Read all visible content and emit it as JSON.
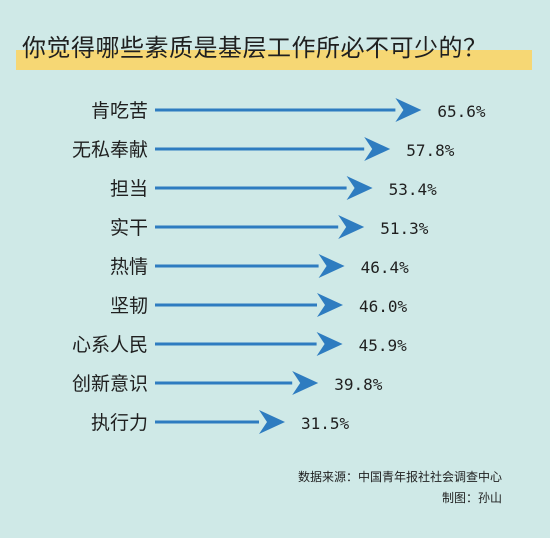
{
  "chart_data": {
    "type": "bar",
    "title": "你觉得哪些素质是基层工作所必不可少的？",
    "categories": [
      "肯吃苦",
      "无私奉献",
      "担当",
      "实干",
      "热情",
      "坚韧",
      "心系人民",
      "创新意识",
      "执行力"
    ],
    "values": [
      65.6,
      57.8,
      53.4,
      51.3,
      46.4,
      46.0,
      45.9,
      39.8,
      31.5
    ],
    "value_labels": [
      "65.6%",
      "57.8%",
      "53.4%",
      "51.3%",
      "46.4%",
      "46.0%",
      "45.9%",
      "39.8%",
      "31.5%"
    ],
    "unit": "%",
    "orientation": "horizontal",
    "bar_style": "arrow",
    "colors": {
      "arrow": "#2e7cc0",
      "title_band": "#f6d774",
      "background": "#cfe9e7"
    }
  },
  "footer": {
    "source": "数据来源：中国青年报社社会调查中心",
    "credit": "制图：孙山"
  }
}
